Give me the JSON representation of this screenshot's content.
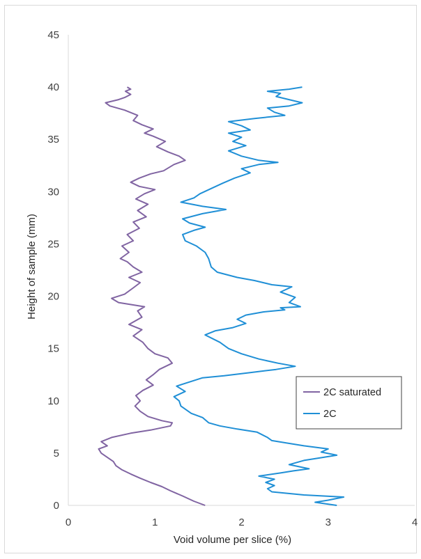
{
  "chart_data": {
    "type": "line",
    "title": "",
    "xlabel": "Void volume per slice (%)",
    "ylabel": "Height of sample (mm)",
    "xlim": [
      0,
      4
    ],
    "ylim": [
      0,
      45
    ],
    "x_ticks": [
      "0",
      "1",
      "2",
      "3",
      "4"
    ],
    "y_ticks": [
      "0",
      "5",
      "10",
      "15",
      "20",
      "25",
      "30",
      "35",
      "40",
      "45"
    ],
    "grid": false,
    "legend_position": "right-center",
    "orientation": "x is void volume, y is height",
    "series": [
      {
        "name": "2C saturated",
        "color": "#8064a2",
        "points": [
          [
            1.58,
            0
          ],
          [
            1.45,
            0.4
          ],
          [
            1.32,
            0.9
          ],
          [
            1.18,
            1.4
          ],
          [
            1.08,
            1.8
          ],
          [
            0.95,
            2.2
          ],
          [
            0.83,
            2.6
          ],
          [
            0.72,
            3.0
          ],
          [
            0.62,
            3.4
          ],
          [
            0.55,
            3.8
          ],
          [
            0.52,
            4.2
          ],
          [
            0.45,
            4.6
          ],
          [
            0.38,
            5.0
          ],
          [
            0.35,
            5.4
          ],
          [
            0.45,
            5.7
          ],
          [
            0.38,
            6.1
          ],
          [
            0.5,
            6.5
          ],
          [
            0.72,
            6.9
          ],
          [
            0.95,
            7.2
          ],
          [
            1.18,
            7.6
          ],
          [
            1.2,
            7.9
          ],
          [
            1.08,
            8.1
          ],
          [
            0.92,
            8.5
          ],
          [
            0.83,
            9.0
          ],
          [
            0.77,
            9.5
          ],
          [
            0.83,
            10.0
          ],
          [
            0.78,
            10.5
          ],
          [
            0.86,
            11.0
          ],
          [
            0.98,
            11.5
          ],
          [
            0.9,
            12.0
          ],
          [
            0.98,
            12.5
          ],
          [
            1.05,
            13.0
          ],
          [
            1.2,
            13.6
          ],
          [
            1.15,
            14.1
          ],
          [
            1.0,
            14.5
          ],
          [
            0.92,
            15.0
          ],
          [
            0.86,
            15.6
          ],
          [
            0.75,
            16.2
          ],
          [
            0.85,
            16.8
          ],
          [
            0.7,
            17.3
          ],
          [
            0.85,
            18.0
          ],
          [
            0.8,
            18.6
          ],
          [
            0.88,
            19.0
          ],
          [
            0.58,
            19.4
          ],
          [
            0.5,
            19.8
          ],
          [
            0.65,
            20.2
          ],
          [
            0.75,
            20.8
          ],
          [
            0.83,
            21.3
          ],
          [
            0.7,
            21.8
          ],
          [
            0.85,
            22.3
          ],
          [
            0.75,
            22.8
          ],
          [
            0.68,
            23.3
          ],
          [
            0.6,
            23.6
          ],
          [
            0.7,
            24.2
          ],
          [
            0.62,
            24.8
          ],
          [
            0.75,
            25.3
          ],
          [
            0.68,
            25.9
          ],
          [
            0.82,
            26.5
          ],
          [
            0.75,
            27.1
          ],
          [
            0.9,
            27.6
          ],
          [
            0.8,
            28.2
          ],
          [
            0.92,
            28.8
          ],
          [
            0.78,
            29.3
          ],
          [
            0.88,
            29.8
          ],
          [
            1.0,
            30.2
          ],
          [
            0.82,
            30.5
          ],
          [
            0.72,
            30.9
          ],
          [
            0.82,
            31.3
          ],
          [
            0.95,
            31.7
          ],
          [
            1.1,
            32.0
          ],
          [
            1.22,
            32.6
          ],
          [
            1.35,
            33.0
          ],
          [
            1.28,
            33.4
          ],
          [
            1.15,
            33.8
          ],
          [
            1.02,
            34.3
          ],
          [
            1.12,
            34.8
          ],
          [
            0.98,
            35.3
          ],
          [
            0.88,
            35.6
          ],
          [
            0.98,
            36.0
          ],
          [
            0.85,
            36.4
          ],
          [
            0.75,
            36.8
          ],
          [
            0.8,
            37.3
          ],
          [
            0.65,
            37.8
          ],
          [
            0.48,
            38.2
          ],
          [
            0.43,
            38.5
          ],
          [
            0.58,
            38.8
          ],
          [
            0.65,
            39.0
          ],
          [
            0.72,
            39.3
          ],
          [
            0.66,
            39.6
          ],
          [
            0.72,
            39.8
          ],
          [
            0.68,
            40.0
          ]
        ]
      },
      {
        "name": "2C",
        "color": "#1f8fd6",
        "points": [
          [
            3.1,
            0
          ],
          [
            2.85,
            0.3
          ],
          [
            3.0,
            0.5
          ],
          [
            3.18,
            0.8
          ],
          [
            2.72,
            1.0
          ],
          [
            2.35,
            1.3
          ],
          [
            2.3,
            1.6
          ],
          [
            2.38,
            1.9
          ],
          [
            2.28,
            2.2
          ],
          [
            2.38,
            2.5
          ],
          [
            2.2,
            2.8
          ],
          [
            2.45,
            3.1
          ],
          [
            2.6,
            3.3
          ],
          [
            2.78,
            3.5
          ],
          [
            2.55,
            3.9
          ],
          [
            2.72,
            4.3
          ],
          [
            2.95,
            4.6
          ],
          [
            3.1,
            4.8
          ],
          [
            2.92,
            5.1
          ],
          [
            3.0,
            5.4
          ],
          [
            2.72,
            5.7
          ],
          [
            2.35,
            6.2
          ],
          [
            2.3,
            6.5
          ],
          [
            2.18,
            7.0
          ],
          [
            1.95,
            7.3
          ],
          [
            1.75,
            7.6
          ],
          [
            1.62,
            7.9
          ],
          [
            1.55,
            8.4
          ],
          [
            1.42,
            8.8
          ],
          [
            1.3,
            9.5
          ],
          [
            1.28,
            10.0
          ],
          [
            1.22,
            10.4
          ],
          [
            1.35,
            10.9
          ],
          [
            1.25,
            11.4
          ],
          [
            1.4,
            11.8
          ],
          [
            1.55,
            12.2
          ],
          [
            1.8,
            12.4
          ],
          [
            2.1,
            12.7
          ],
          [
            2.4,
            13.0
          ],
          [
            2.62,
            13.3
          ],
          [
            2.42,
            13.6
          ],
          [
            2.2,
            14.0
          ],
          [
            2.0,
            14.5
          ],
          [
            1.85,
            15.0
          ],
          [
            1.75,
            15.6
          ],
          [
            1.58,
            16.3
          ],
          [
            1.7,
            16.7
          ],
          [
            1.9,
            17.0
          ],
          [
            2.05,
            17.4
          ],
          [
            1.95,
            17.8
          ],
          [
            2.05,
            18.2
          ],
          [
            2.25,
            18.5
          ],
          [
            2.5,
            18.7
          ],
          [
            2.45,
            18.9
          ],
          [
            2.68,
            19.0
          ],
          [
            2.55,
            19.4
          ],
          [
            2.62,
            19.9
          ],
          [
            2.45,
            20.4
          ],
          [
            2.58,
            20.9
          ],
          [
            2.35,
            21.1
          ],
          [
            2.15,
            21.5
          ],
          [
            1.95,
            21.8
          ],
          [
            1.72,
            22.3
          ],
          [
            1.65,
            22.8
          ],
          [
            1.62,
            23.6
          ],
          [
            1.58,
            24.2
          ],
          [
            1.48,
            24.8
          ],
          [
            1.35,
            25.3
          ],
          [
            1.32,
            25.9
          ],
          [
            1.45,
            26.3
          ],
          [
            1.58,
            26.6
          ],
          [
            1.4,
            27.0
          ],
          [
            1.32,
            27.4
          ],
          [
            1.55,
            27.9
          ],
          [
            1.82,
            28.3
          ],
          [
            1.55,
            28.6
          ],
          [
            1.3,
            29.0
          ],
          [
            1.45,
            29.4
          ],
          [
            1.52,
            29.8
          ],
          [
            1.65,
            30.3
          ],
          [
            1.78,
            30.8
          ],
          [
            1.92,
            31.3
          ],
          [
            2.1,
            31.8
          ],
          [
            2.0,
            32.2
          ],
          [
            2.2,
            32.6
          ],
          [
            2.42,
            32.8
          ],
          [
            2.2,
            33.0
          ],
          [
            2.0,
            33.4
          ],
          [
            1.85,
            33.9
          ],
          [
            2.05,
            34.4
          ],
          [
            1.9,
            34.8
          ],
          [
            2.0,
            35.2
          ],
          [
            1.85,
            35.6
          ],
          [
            2.1,
            35.9
          ],
          [
            2.0,
            36.3
          ],
          [
            1.85,
            36.7
          ],
          [
            2.15,
            37.0
          ],
          [
            2.5,
            37.3
          ],
          [
            2.38,
            37.6
          ],
          [
            2.3,
            38.0
          ],
          [
            2.55,
            38.2
          ],
          [
            2.7,
            38.5
          ],
          [
            2.55,
            38.8
          ],
          [
            2.4,
            39.1
          ],
          [
            2.45,
            39.4
          ],
          [
            2.3,
            39.6
          ],
          [
            2.55,
            39.8
          ],
          [
            2.7,
            40.0
          ]
        ]
      }
    ]
  }
}
